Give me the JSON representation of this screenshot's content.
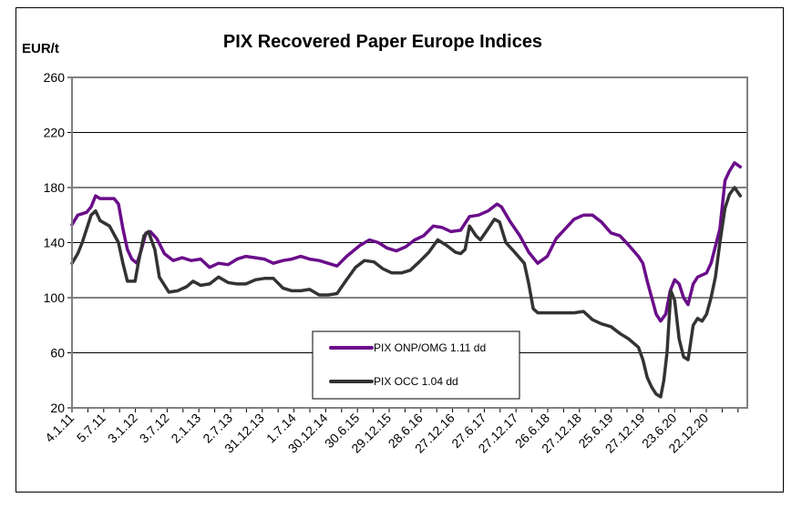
{
  "chart_data": {
    "type": "line",
    "title": "PIX Recovered Paper Europe Indices",
    "ylabel": "EUR/t",
    "xlabel": "",
    "ylim": [
      20,
      260
    ],
    "yticks": [
      20,
      60,
      100,
      140,
      180,
      220,
      260
    ],
    "xlim": [
      2011.01,
      2021.61
    ],
    "grid": true,
    "legend_position": "bottom-center",
    "x_tick_labels": [
      "4.1.11",
      "5.7.11",
      "3.1.12",
      "3.7.12",
      "2.1.13",
      "2.7.13",
      "31.12.13",
      "1.7.14",
      "30.12.14",
      "30.6.15",
      "29.12.15",
      "28.6.16",
      "27.12.16",
      "27.6.17",
      "27.12.17",
      "26.6.18",
      "27.12.18",
      "25.6.19",
      "27.12.19",
      "23.6.20",
      "22.12.20"
    ],
    "series": [
      {
        "name": "PIX ONP/OMG 1.11 dd",
        "color": "#6a0d8a",
        "x": [
          2011.01,
          2011.1,
          2011.24,
          2011.31,
          2011.38,
          2011.45,
          2011.67,
          2011.74,
          2011.81,
          2011.88,
          2011.95,
          2012.03,
          2012.1,
          2012.17,
          2012.24,
          2012.34,
          2012.46,
          2012.6,
          2012.74,
          2012.88,
          2013.03,
          2013.17,
          2013.31,
          2013.46,
          2013.6,
          2013.74,
          2013.89,
          2014.03,
          2014.17,
          2014.32,
          2014.46,
          2014.6,
          2014.74,
          2014.89,
          2015.03,
          2015.17,
          2015.32,
          2015.53,
          2015.68,
          2015.82,
          2015.96,
          2016.1,
          2016.25,
          2016.39,
          2016.53,
          2016.68,
          2016.82,
          2016.96,
          2017.11,
          2017.25,
          2017.39,
          2017.54,
          2017.68,
          2017.75,
          2017.89,
          2018.04,
          2018.18,
          2018.32,
          2018.47,
          2018.61,
          2018.75,
          2018.89,
          2019.04,
          2019.18,
          2019.32,
          2019.47,
          2019.61,
          2019.75,
          2019.9,
          2019.97,
          2020.04,
          2020.11,
          2020.18,
          2020.25,
          2020.33,
          2020.4,
          2020.47,
          2020.54,
          2020.61,
          2020.68,
          2020.76,
          2020.83,
          2020.97,
          2021.04,
          2021.18,
          2021.26,
          2021.33,
          2021.41,
          2021.5
        ],
        "values": [
          153,
          160,
          162,
          166,
          174,
          172,
          172,
          168,
          150,
          135,
          128,
          125,
          135,
          147,
          148,
          143,
          132,
          127,
          129,
          127,
          128,
          122,
          125,
          124,
          128,
          130,
          129,
          128,
          125,
          127,
          128,
          130,
          128,
          127,
          125,
          123,
          130,
          138,
          142,
          140,
          136,
          134,
          137,
          142,
          145,
          152,
          151,
          148,
          149,
          159,
          160,
          163,
          168,
          166,
          155,
          145,
          133,
          125,
          130,
          143,
          150,
          157,
          160,
          160,
          155,
          147,
          145,
          138,
          130,
          125,
          112,
          100,
          88,
          83,
          88,
          105,
          113,
          110,
          100,
          95,
          110,
          115,
          118,
          125,
          150,
          185,
          192,
          198,
          195
        ]
      },
      {
        "name": "PIX OCC 1.04 dd",
        "color": "#333333",
        "x": [
          2011.01,
          2011.1,
          2011.17,
          2011.24,
          2011.31,
          2011.38,
          2011.45,
          2011.6,
          2011.74,
          2011.81,
          2011.88,
          2012.0,
          2012.05,
          2012.14,
          2012.21,
          2012.31,
          2012.38,
          2012.53,
          2012.67,
          2012.81,
          2012.91,
          2013.03,
          2013.17,
          2013.31,
          2013.46,
          2013.6,
          2013.74,
          2013.89,
          2014.03,
          2014.17,
          2014.32,
          2014.46,
          2014.6,
          2014.74,
          2014.89,
          2015.03,
          2015.17,
          2015.32,
          2015.46,
          2015.6,
          2015.75,
          2015.89,
          2016.03,
          2016.18,
          2016.32,
          2016.46,
          2016.61,
          2016.75,
          2016.89,
          2017.03,
          2017.11,
          2017.18,
          2017.25,
          2017.35,
          2017.42,
          2017.54,
          2017.64,
          2017.72,
          2017.82,
          2017.96,
          2018.11,
          2018.18,
          2018.25,
          2018.32,
          2018.47,
          2018.75,
          2018.89,
          2019.04,
          2019.18,
          2019.32,
          2019.47,
          2019.61,
          2019.75,
          2019.9,
          2019.97,
          2020.04,
          2020.11,
          2020.18,
          2020.25,
          2020.3,
          2020.35,
          2020.41,
          2020.47,
          2020.54,
          2020.61,
          2020.68,
          2020.76,
          2020.83,
          2020.9,
          2020.97,
          2021.04,
          2021.11,
          2021.18,
          2021.26,
          2021.33,
          2021.41,
          2021.5
        ],
        "values": [
          125,
          132,
          140,
          150,
          160,
          163,
          156,
          152,
          140,
          125,
          112,
          112,
          125,
          145,
          148,
          135,
          115,
          104,
          105,
          108,
          112,
          109,
          110,
          115,
          111,
          110,
          110,
          113,
          114,
          114,
          107,
          105,
          105,
          106,
          102,
          102,
          103,
          113,
          122,
          127,
          126,
          121,
          118,
          118,
          120,
          126,
          133,
          142,
          138,
          133,
          132,
          135,
          152,
          145,
          142,
          150,
          157,
          155,
          140,
          133,
          125,
          110,
          92,
          89,
          89,
          89,
          89,
          90,
          84,
          81,
          79,
          74,
          70,
          64,
          55,
          42,
          35,
          30,
          28,
          40,
          60,
          105,
          98,
          70,
          57,
          55,
          80,
          85,
          83,
          88,
          100,
          115,
          140,
          165,
          175,
          180,
          174
        ]
      }
    ]
  }
}
